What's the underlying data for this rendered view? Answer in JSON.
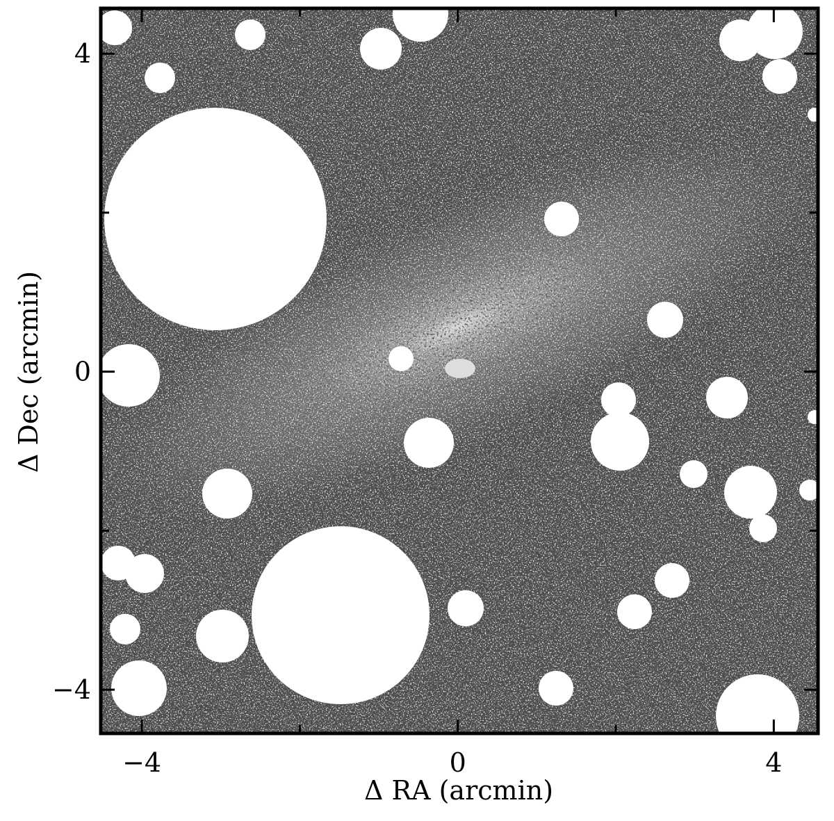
{
  "chart_data": {
    "type": "image",
    "xlabel": "Δ RA (arcmin)",
    "ylabel": "Δ Dec (arcmin)",
    "xlim": [
      -4.52,
      4.56
    ],
    "ylim": [
      -4.55,
      4.57
    ],
    "xticks": [
      {
        "value": -4,
        "label": "−4"
      },
      0,
      4
    ],
    "yticks": [
      {
        "value": -4,
        "label": "−4"
      },
      0,
      4
    ],
    "xminor_ticks": [
      -2,
      2
    ],
    "yminor_ticks": [
      -2,
      2
    ]
  }
}
